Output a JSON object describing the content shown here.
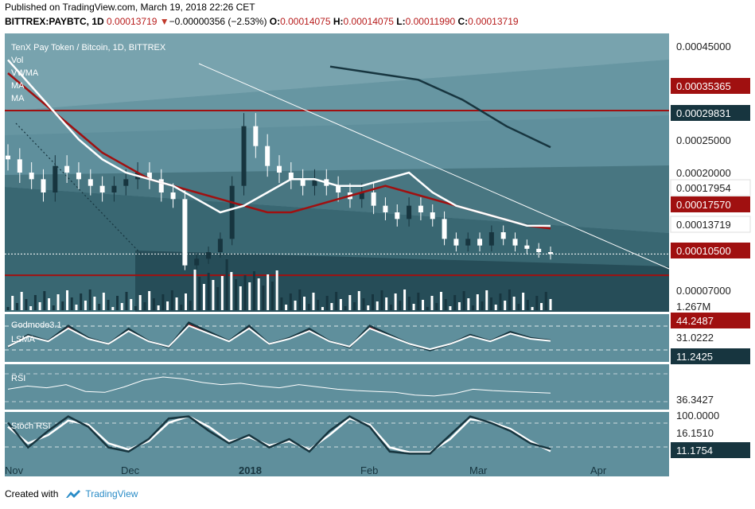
{
  "header": {
    "published": "Published on TradingView.com, March 19, 2018 22:26 CET",
    "symbol": "BITTREX:PAYBTC, 1D",
    "last": "0.00013719",
    "change": "−0.00000356 (−2.53%)",
    "o_label": "O:",
    "o_value": "0.00014075",
    "h_label": "H:",
    "h_value": "0.00014075",
    "l_label": "L:",
    "l_value": "0.00011990",
    "c_label": "C:",
    "c_value": "0.00013719"
  },
  "legend": {
    "title": "TenX Pay Token / Bitcoin, 1D, BITTREX",
    "items": [
      "Vol",
      "VWMA",
      "MA",
      "MA"
    ]
  },
  "price_axis": {
    "ticks": [
      "0.00045000",
      "0.00025000",
      "0.00020000",
      "0.00007000"
    ],
    "tag_red_1": "0.00035365",
    "tag_dark": "0.00029831",
    "tag_white_1": "0.00017954",
    "tag_red_2": "0.00017570",
    "tag_white_2": "0.00013719",
    "tag_red_3": "0.00010500",
    "volume_tag": "1.267M"
  },
  "panels": {
    "godmode": {
      "labels": [
        "Godmode3.1",
        "LSMA"
      ],
      "tag_red": "44.2487",
      "tag_white": "31.0222",
      "tag_dark": "11.2425"
    },
    "rsi": {
      "label": "RSI",
      "tag": "36.3427"
    },
    "stoch": {
      "label": "Stoch RSI",
      "tag_top": "100.0000",
      "tag_white": "16.1510",
      "tag_dark": "11.1754"
    }
  },
  "time_axis": {
    "labels": [
      "Nov",
      "Dec",
      "2018",
      "Feb",
      "Mar",
      "Apr"
    ]
  },
  "footer": {
    "created_with": "Created with",
    "brand": "TradingView"
  },
  "colors": {
    "panel_bg": "#5f8f9c",
    "bear_candle": "#ffffff",
    "bull_candle": "#17353f",
    "ma_red": "#a01010",
    "support_red": "#a01010",
    "tag_dark_bg": "#17353f"
  },
  "chart_data": [
    {
      "type": "candlestick",
      "title": "TenX Pay Token / Bitcoin, 1D, BITTREX",
      "x": [
        "Nov",
        "Dec",
        "2018",
        "Feb",
        "Mar",
        "Apr"
      ],
      "ylim": [
        5e-05,
        0.00047
      ],
      "horizontal_levels": [
        0.00035365,
        0.000105
      ],
      "close_series": [
        0.00028,
        0.00026,
        0.00025,
        0.00023,
        0.00027,
        0.00026,
        0.00025,
        0.00024,
        0.00023,
        0.00024,
        0.00025,
        0.00026,
        0.00025,
        0.00023,
        0.00022,
        0.00012,
        0.00013,
        0.00014,
        0.00016,
        0.00024,
        0.00033,
        0.0003,
        0.00027,
        0.00026,
        0.00025,
        0.00024,
        0.00025,
        0.00024,
        0.00023,
        0.00022,
        0.00023,
        0.00021,
        0.0002,
        0.00019,
        0.00021,
        0.0002,
        0.00019,
        0.00016,
        0.00015,
        0.00016,
        0.00015,
        0.00017,
        0.00016,
        0.00015,
        0.000145,
        0.00014,
        0.00013719
      ],
      "ma_slow": [
        0.00041,
        0.00038,
        0.00035,
        0.00032,
        0.00029,
        0.00027,
        0.00025,
        0.00024,
        0.00023,
        0.00022,
        0.00021,
        0.0002,
        0.0002,
        0.00021,
        0.00022,
        0.00023,
        0.00024,
        0.00023,
        0.00022,
        0.00021,
        0.0002,
        0.00019,
        0.00018,
        0.0001757
      ],
      "vwma": [
        0.00043,
        0.00039,
        0.00035,
        0.00031,
        0.00028,
        0.00026,
        0.00025,
        0.00024,
        0.00022,
        0.0002,
        0.00021,
        0.00023,
        0.00025,
        0.00025,
        0.00024,
        0.00024,
        0.00025,
        0.00026,
        0.00023,
        0.00021,
        0.0002,
        0.00019,
        0.00018,
        0.00017954
      ],
      "ma_long": [
        0.00042,
        0.00041,
        0.0004,
        0.00037,
        0.00033,
        0.00029831
      ]
    },
    {
      "type": "bar",
      "title": "Vol",
      "last_value": "1.267M"
    },
    {
      "type": "line",
      "title": "Godmode3.1",
      "series": [
        {
          "name": "LSMA",
          "values": [
            20,
            40,
            30,
            55,
            35,
            25,
            50,
            30,
            20,
            60,
            45,
            30,
            55,
            25,
            35,
            50,
            30,
            20,
            55,
            40,
            25,
            15,
            25,
            40,
            30,
            45,
            35,
            31.0222
          ]
        }
      ],
      "last_values": [
        44.2487,
        31.0222,
        11.2425
      ]
    },
    {
      "type": "line",
      "title": "RSI",
      "series": [
        {
          "name": "RSI",
          "values": [
            45,
            52,
            48,
            55,
            40,
            38,
            50,
            65,
            72,
            68,
            60,
            55,
            58,
            52,
            48,
            55,
            50,
            45,
            42,
            40,
            38,
            32,
            30,
            35,
            45,
            42,
            40,
            38,
            36.3427
          ]
        }
      ]
    },
    {
      "type": "line",
      "title": "Stoch RSI",
      "series": [
        {
          "name": "K",
          "values": [
            80,
            20,
            60,
            95,
            70,
            20,
            10,
            40,
            90,
            95,
            60,
            30,
            50,
            20,
            40,
            10,
            60,
            95,
            70,
            10,
            5,
            5,
            50,
            95,
            80,
            60,
            30,
            16.151
          ]
        },
        {
          "name": "D",
          "values": [
            70,
            30,
            50,
            85,
            75,
            30,
            15,
            35,
            80,
            95,
            70,
            35,
            45,
            25,
            35,
            15,
            50,
            90,
            75,
            20,
            8,
            8,
            40,
            88,
            82,
            65,
            35,
            11.1754
          ]
        }
      ]
    }
  ]
}
